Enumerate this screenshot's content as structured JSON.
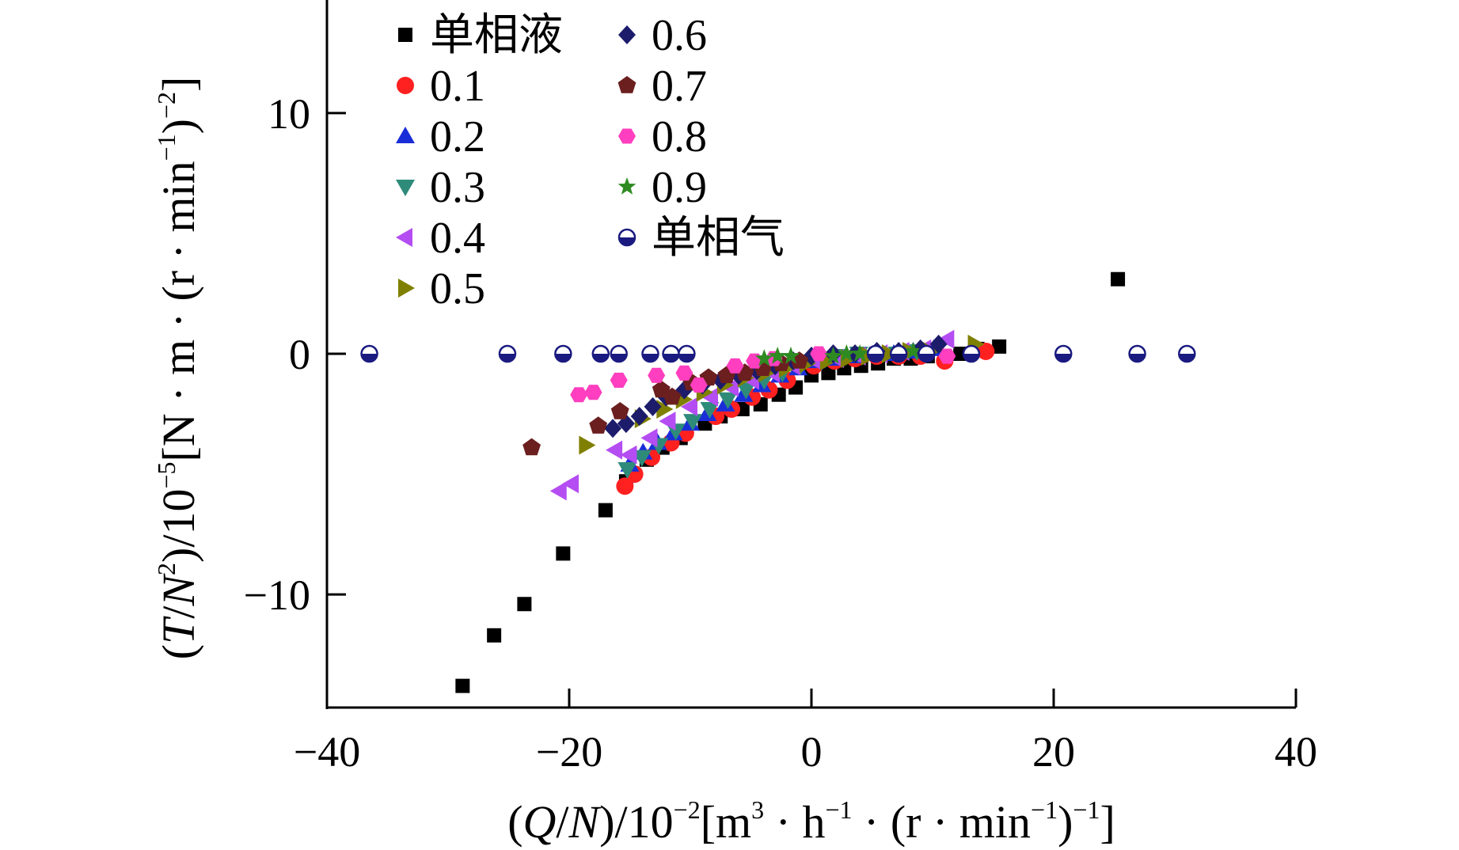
{
  "chart_data": {
    "type": "scatter",
    "title": "",
    "xlabel": {
      "open": "(",
      "q": "Q",
      "slash": "/",
      "n": "N",
      "close_scale": ")/10",
      "exp_scale": "−2",
      "unit_a": "[m",
      "exp_a": "3",
      "unit_b": " · h",
      "exp_b": "−1",
      "unit_c": " · (r · min",
      "exp_c": "−1",
      "unit_d": ")",
      "exp_d": "−1",
      "unit_e": "]"
    },
    "ylabel": {
      "open": "(",
      "t": "T",
      "slash": "/",
      "n": "N",
      "exp_n": "2",
      "close_scale": ")/10",
      "exp_scale": "−5",
      "unit_a": "[N · m · (r · min",
      "exp_a": "−1",
      "unit_b": ")",
      "exp_b": "−2",
      "unit_c": "]"
    },
    "xlim": [
      -40,
      40
    ],
    "ylim": [
      -14.7,
      14.7
    ],
    "xticks": [
      -40,
      -20,
      0,
      20,
      40
    ],
    "xtick_labels": [
      "−40",
      "−20",
      "0",
      "20",
      "40"
    ],
    "yticks": [
      -10,
      0,
      10
    ],
    "ytick_labels": [
      "−10",
      "0",
      "10"
    ],
    "grid": false,
    "legend_position": "top-left",
    "series": [
      {
        "name": "单相液",
        "marker": "square",
        "color": "#000000",
        "x": [
          -28.8,
          -26.2,
          -23.7,
          -20.5,
          -17.0,
          -15.3,
          -13.6,
          -12.3,
          -10.8,
          -8.8,
          -7.5,
          -5.7,
          -4.2,
          -2.7,
          -1.3,
          0.0,
          1.4,
          2.7,
          4.1,
          5.5,
          6.8,
          8.2,
          9.6,
          11.0,
          12.3,
          13.7,
          15.5,
          25.3
        ],
        "y": [
          -13.8,
          -11.7,
          -10.4,
          -8.3,
          -6.5,
          -5.3,
          -4.4,
          -3.9,
          -3.5,
          -2.9,
          -2.6,
          -2.3,
          -2.1,
          -1.7,
          -1.4,
          -0.9,
          -0.8,
          -0.6,
          -0.5,
          -0.4,
          -0.2,
          -0.2,
          -0.1,
          -0.1,
          0.0,
          0.2,
          0.3,
          3.1
        ]
      },
      {
        "name": "0.1",
        "marker": "circle",
        "color": "#ff2020",
        "x": [
          -15.4,
          -14.6,
          -13.2,
          -11.6,
          -10.4,
          -7.9,
          -6.6,
          -4.9,
          -3.5,
          -2.0,
          0.2,
          1.9,
          3.6,
          5.4,
          7.2,
          9.0,
          11.0,
          14.4
        ],
        "y": [
          -5.5,
          -5.0,
          -4.3,
          -3.7,
          -3.3,
          -2.6,
          -2.3,
          -1.8,
          -1.5,
          -1.1,
          -0.5,
          -0.3,
          -0.2,
          -0.1,
          -0.1,
          -0.1,
          -0.3,
          0.1
        ]
      },
      {
        "name": "0.2",
        "marker": "triangle-up",
        "color": "#1a2ed8",
        "x": [
          -15.0,
          -13.9,
          -12.7,
          -11.4,
          -10.0,
          -8.6,
          -7.1,
          -5.6,
          -4.1,
          -2.6,
          -1.1,
          0.4,
          2.0,
          3.6,
          5.2,
          6.8,
          8.4,
          10.1
        ],
        "y": [
          -4.6,
          -4.1,
          -3.7,
          -3.3,
          -2.9,
          -2.5,
          -2.1,
          -1.7,
          -1.3,
          -0.9,
          -0.6,
          -0.3,
          -0.2,
          -0.1,
          0.0,
          0.0,
          0.1,
          0.2
        ]
      },
      {
        "name": "0.3",
        "marker": "triangle-down",
        "color": "#2e8b7a",
        "x": [
          -15.2,
          -14.0,
          -12.6,
          -11.2,
          -9.8,
          -8.4,
          -6.9,
          -5.4,
          -3.9,
          -2.4,
          -0.9,
          0.7,
          2.3,
          3.9,
          5.5,
          7.1,
          8.7
        ],
        "y": [
          -4.8,
          -4.3,
          -3.8,
          -3.2,
          -2.8,
          -2.3,
          -1.9,
          -1.5,
          -1.1,
          -0.8,
          -0.5,
          -0.2,
          -0.1,
          0.0,
          0.0,
          0.0,
          0.1
        ]
      },
      {
        "name": "0.4",
        "marker": "triangle-left",
        "color": "#b44df2",
        "x": [
          -20.8,
          -19.8,
          -16.2,
          -15.0,
          -13.3,
          -11.8,
          -10.0,
          -8.3,
          -6.6,
          -4.9,
          -3.2,
          -1.5,
          0.3,
          2.1,
          3.9,
          5.7,
          7.5,
          9.3,
          11.2
        ],
        "y": [
          -5.7,
          -5.4,
          -4.0,
          -4.2,
          -3.5,
          -2.8,
          -2.2,
          -1.8,
          -1.4,
          -1.1,
          -0.8,
          -0.5,
          -0.3,
          -0.2,
          -0.1,
          0.0,
          0.1,
          0.2,
          0.6
        ]
      },
      {
        "name": "0.5",
        "marker": "triangle-right",
        "color": "#808000",
        "x": [
          -18.6,
          -14.0,
          -12.2,
          -10.6,
          -8.9,
          -7.2,
          -5.5,
          -3.8,
          -2.1,
          -0.4,
          1.3,
          3.0,
          4.7,
          6.4,
          8.1,
          9.8,
          13.5
        ],
        "y": [
          -3.8,
          -2.7,
          -2.3,
          -1.9,
          -1.6,
          -1.3,
          -1.0,
          -0.8,
          -0.6,
          -0.4,
          -0.3,
          -0.2,
          -0.1,
          0.0,
          0.1,
          0.1,
          0.4
        ]
      },
      {
        "name": "0.6",
        "marker": "diamond",
        "color": "#1c1c6b",
        "x": [
          -16.4,
          -15.3,
          -14.2,
          -13.1,
          -12.0,
          -10.5,
          -9.0,
          -7.5,
          -6.0,
          -4.5,
          -3.0,
          -1.5,
          0.0,
          1.8,
          3.6,
          5.4,
          7.2,
          9.0,
          10.5
        ],
        "y": [
          -3.1,
          -2.9,
          -2.6,
          -2.2,
          -1.8,
          -1.5,
          -1.3,
          -1.1,
          -0.9,
          -0.7,
          -0.5,
          -0.3,
          -0.1,
          0.0,
          0.0,
          0.1,
          0.1,
          0.2,
          0.4
        ]
      },
      {
        "name": "0.7",
        "marker": "pentagon",
        "color": "#6b1f1f",
        "x": [
          -23.1,
          -17.6,
          -15.8,
          -12.4,
          -11.5,
          -9.9,
          -8.5,
          -7.0,
          -5.5,
          -4.0,
          -2.5,
          -1.0
        ],
        "y": [
          -3.9,
          -3.0,
          -2.4,
          -1.5,
          -1.8,
          -1.2,
          -1.0,
          -0.9,
          -0.8,
          -0.6,
          -0.4,
          -0.3
        ]
      },
      {
        "name": "0.8",
        "marker": "hexagon",
        "color": "#ff3fbf",
        "x": [
          -19.2,
          -18.0,
          -15.9,
          -12.8,
          -10.5,
          -9.3,
          -6.3,
          -4.7,
          -3.1,
          0.6,
          11.2
        ],
        "y": [
          -1.7,
          -1.6,
          -1.1,
          -0.9,
          -0.8,
          -1.3,
          -0.5,
          -0.3,
          -0.2,
          0.0,
          -0.1
        ]
      },
      {
        "name": "0.9",
        "marker": "star",
        "color": "#2e8b22",
        "x": [
          -3.9,
          -2.8,
          -1.7,
          1.8,
          2.9,
          4.0,
          8.4
        ],
        "y": [
          -0.2,
          -0.1,
          -0.1,
          -0.1,
          0.0,
          0.0,
          0.1
        ]
      },
      {
        "name": "单相气",
        "marker": "half-circle",
        "color": "#1a1a80",
        "x": [
          -36.5,
          -25.1,
          -20.5,
          -17.4,
          -15.9,
          -13.3,
          -11.6,
          -10.3,
          5.3,
          7.2,
          9.5,
          13.2,
          20.8,
          26.9,
          31.0
        ],
        "y": [
          0.0,
          0.0,
          0.0,
          0.0,
          0.0,
          0.0,
          0.0,
          0.0,
          0.0,
          0.0,
          0.0,
          0.0,
          0.0,
          0.0,
          0.0
        ]
      }
    ]
  }
}
